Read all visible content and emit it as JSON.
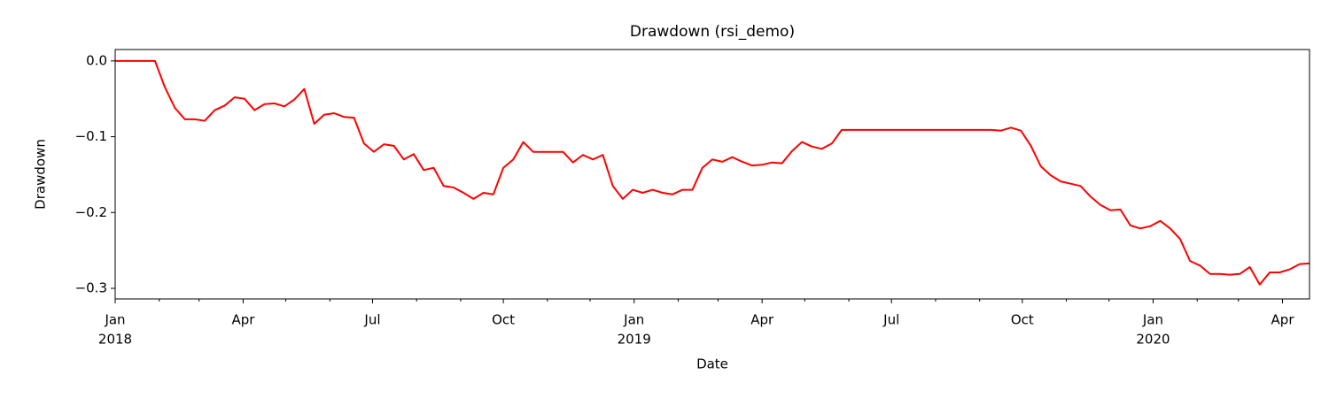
{
  "chart_data": {
    "type": "line",
    "title": "Drawdown (rsi_demo)",
    "xlabel": "Date",
    "ylabel": "Drawdown",
    "x": [
      "2018-01-01",
      "2018-01-08",
      "2018-01-15",
      "2018-01-22",
      "2018-01-29",
      "2018-02-05",
      "2018-02-12",
      "2018-02-19",
      "2018-02-26",
      "2018-03-05",
      "2018-03-12",
      "2018-03-19",
      "2018-03-26",
      "2018-04-02",
      "2018-04-09",
      "2018-04-16",
      "2018-04-23",
      "2018-04-30",
      "2018-05-07",
      "2018-05-14",
      "2018-05-21",
      "2018-05-28",
      "2018-06-04",
      "2018-06-11",
      "2018-06-18",
      "2018-06-25",
      "2018-07-02",
      "2018-07-09",
      "2018-07-16",
      "2018-07-23",
      "2018-07-30",
      "2018-08-06",
      "2018-08-13",
      "2018-08-20",
      "2018-08-27",
      "2018-09-03",
      "2018-09-10",
      "2018-09-17",
      "2018-09-24",
      "2018-10-01",
      "2018-10-08",
      "2018-10-15",
      "2018-10-22",
      "2018-10-29",
      "2018-11-05",
      "2018-11-12",
      "2018-11-19",
      "2018-11-26",
      "2018-12-03",
      "2018-12-10",
      "2018-12-17",
      "2018-12-24",
      "2018-12-31",
      "2019-01-07",
      "2019-01-14",
      "2019-01-21",
      "2019-01-28",
      "2019-02-04",
      "2019-02-11",
      "2019-02-18",
      "2019-02-25",
      "2019-03-04",
      "2019-03-11",
      "2019-03-18",
      "2019-03-25",
      "2019-04-01",
      "2019-04-08",
      "2019-04-15",
      "2019-04-22",
      "2019-04-29",
      "2019-05-06",
      "2019-05-13",
      "2019-05-20",
      "2019-05-27",
      "2019-06-03",
      "2019-06-10",
      "2019-06-17",
      "2019-06-24",
      "2019-07-01",
      "2019-07-08",
      "2019-07-15",
      "2019-07-22",
      "2019-07-29",
      "2019-08-05",
      "2019-08-12",
      "2019-08-19",
      "2019-08-26",
      "2019-09-02",
      "2019-09-09",
      "2019-09-16",
      "2019-09-23",
      "2019-09-30",
      "2019-10-07",
      "2019-10-14",
      "2019-10-21",
      "2019-10-28",
      "2019-11-04",
      "2019-11-11",
      "2019-11-18",
      "2019-11-25",
      "2019-12-02",
      "2019-12-09",
      "2019-12-16",
      "2019-12-23",
      "2019-12-30",
      "2020-01-06",
      "2020-01-13",
      "2020-01-20",
      "2020-01-27",
      "2020-02-03",
      "2020-02-10",
      "2020-02-17",
      "2020-02-24",
      "2020-03-02",
      "2020-03-09",
      "2020-03-16",
      "2020-03-23",
      "2020-03-30",
      "2020-04-06",
      "2020-04-13",
      "2020-04-20"
    ],
    "series": [
      {
        "name": "Drawdown",
        "color": "red",
        "values": [
          0,
          0,
          0,
          0,
          0,
          -0.035,
          -0.062,
          -0.077,
          -0.077,
          -0.079,
          -0.065,
          -0.059,
          -0.048,
          -0.05,
          -0.065,
          -0.057,
          -0.056,
          -0.06,
          -0.051,
          -0.037,
          -0.083,
          -0.071,
          -0.069,
          -0.074,
          -0.075,
          -0.109,
          -0.12,
          -0.11,
          -0.112,
          -0.13,
          -0.123,
          -0.144,
          -0.141,
          -0.165,
          -0.167,
          -0.174,
          -0.182,
          -0.174,
          -0.176,
          -0.141,
          -0.13,
          -0.107,
          -0.12,
          -0.12,
          -0.12,
          -0.12,
          -0.134,
          -0.124,
          -0.13,
          -0.124,
          -0.165,
          -0.182,
          -0.17,
          -0.174,
          -0.17,
          -0.174,
          -0.176,
          -0.17,
          -0.17,
          -0.141,
          -0.13,
          -0.133,
          -0.127,
          -0.133,
          -0.138,
          -0.137,
          -0.134,
          -0.135,
          -0.119,
          -0.107,
          -0.113,
          -0.116,
          -0.109,
          -0.091,
          -0.091,
          -0.091,
          -0.091,
          -0.091,
          -0.091,
          -0.091,
          -0.091,
          -0.091,
          -0.091,
          -0.091,
          -0.091,
          -0.091,
          -0.091,
          -0.091,
          -0.091,
          -0.092,
          -0.088,
          -0.092,
          -0.112,
          -0.139,
          -0.151,
          -0.159,
          -0.162,
          -0.165,
          -0.179,
          -0.19,
          -0.197,
          -0.196,
          -0.217,
          -0.221,
          -0.218,
          -0.211,
          -0.221,
          -0.235,
          -0.264,
          -0.27,
          -0.281,
          -0.281,
          -0.282,
          -0.281,
          -0.272,
          -0.295,
          -0.279,
          -0.279,
          -0.275,
          -0.268,
          -0.267
        ]
      }
    ],
    "xlim": [
      "2018-01-01",
      "2020-04-20"
    ],
    "xticks": [
      {
        "value": "2018-01-01",
        "label": [
          "Jan",
          "2018"
        ]
      },
      {
        "value": "2018-04-01",
        "label": "Apr"
      },
      {
        "value": "2018-07-01",
        "label": "Jul"
      },
      {
        "value": "2018-10-01",
        "label": "Oct"
      },
      {
        "value": "2019-01-01",
        "label": [
          "Jan",
          "2019"
        ]
      },
      {
        "value": "2019-04-01",
        "label": "Apr"
      },
      {
        "value": "2019-07-01",
        "label": "Jul"
      },
      {
        "value": "2019-10-01",
        "label": "Oct"
      },
      {
        "value": "2020-01-01",
        "label": [
          "Jan",
          "2020"
        ]
      },
      {
        "value": "2020-04-01",
        "label": "Apr"
      }
    ],
    "xminorticks": [
      "2018-02-01",
      "2018-03-01",
      "2018-05-01",
      "2018-06-01",
      "2018-08-01",
      "2018-09-01",
      "2018-11-01",
      "2018-12-01",
      "2019-02-01",
      "2019-03-01",
      "2019-05-01",
      "2019-06-01",
      "2019-08-01",
      "2019-09-01",
      "2019-11-01",
      "2019-12-01",
      "2020-02-01",
      "2020-03-01"
    ],
    "ylim": [
      -0.314,
      0.015
    ],
    "yticks": [
      {
        "value": 0,
        "label": "0.0"
      },
      {
        "value": -0.1,
        "label": "−0.1"
      },
      {
        "value": -0.2,
        "label": "−0.2"
      },
      {
        "value": -0.3,
        "label": "−0.3"
      }
    ],
    "grid": false
  }
}
